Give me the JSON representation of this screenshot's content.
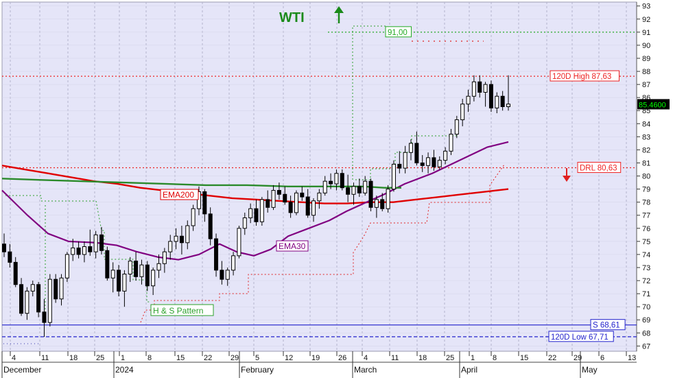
{
  "chart_data": {
    "type": "candlestick",
    "title": "WTI",
    "y_axis": {
      "ticks": [
        67,
        68,
        69,
        70,
        71,
        72,
        73,
        74,
        75,
        76,
        77,
        78,
        79,
        80,
        81,
        82,
        83,
        84,
        85,
        86,
        87,
        88,
        89,
        90,
        91,
        92,
        93
      ],
      "ylim": [
        66.6,
        93.3
      ],
      "side": "right"
    },
    "x_axis": {
      "day_ticks": [
        "4",
        "11",
        "18",
        "25",
        "1",
        "8",
        "15",
        "22",
        "29",
        "5",
        "12",
        "19",
        "26",
        "4",
        "11",
        "18",
        "25",
        "1",
        "8",
        "15",
        "22",
        "29",
        "6",
        "13"
      ],
      "month_labels": [
        "December",
        "2024",
        "February",
        "March",
        "April",
        "May"
      ]
    },
    "current_price": "85.4600",
    "horizontal_levels": [
      {
        "label": "120D High 87,63",
        "value": 87.63,
        "style": "dotted",
        "color": "#ee2222"
      },
      {
        "label": "DRL 80,63",
        "value": 80.63,
        "style": "dotted",
        "color": "#ee2222"
      },
      {
        "label": "S 68,61",
        "value": 68.61,
        "style": "solid",
        "color": "#2222cc"
      },
      {
        "label": "120D Low 67,71",
        "value": 67.71,
        "style": "dashed",
        "color": "#2222cc"
      },
      {
        "label": "91,00",
        "value": 91.0,
        "style": "dotted",
        "color": "#22aa22"
      }
    ],
    "annotations": [
      "EMA200",
      "EMA30",
      "H & S Pattern"
    ],
    "series": [
      {
        "name": "EMA200",
        "color": "#e00000",
        "values": [
          80.8,
          80.5,
          80.2,
          79.9,
          79.6,
          79.4,
          79.1,
          78.9,
          78.7,
          78.5,
          78.3,
          78.2,
          78.1,
          78.0,
          77.9,
          77.9,
          78.0,
          78.0,
          78.2,
          78.4,
          78.6,
          78.8,
          79.0
        ]
      },
      {
        "name": "EMA30",
        "color": "#800080",
        "values": [
          78.9,
          77.0,
          75.6,
          75.0,
          74.9,
          74.7,
          74.2,
          73.8,
          73.6,
          74.0,
          74.8,
          74.2,
          73.9,
          74.4,
          75.4,
          76.0,
          76.6,
          77.3,
          77.9,
          78.6,
          79.4,
          80.2,
          81.2,
          82.2,
          82.6
        ]
      },
      {
        "name": "long-term trend",
        "color": "#2a8a2a",
        "values": [
          79.8,
          79.7,
          79.6,
          79.5,
          79.4,
          79.3,
          79.3,
          79.2,
          79.2,
          79.2,
          79.2,
          79.1,
          79.1,
          79.1
        ]
      }
    ],
    "candles": [
      [
        74.8,
        75.6,
        73.8,
        74.2
      ],
      [
        74.2,
        74.8,
        73.0,
        73.4
      ],
      [
        73.4,
        73.8,
        71.5,
        71.7
      ],
      [
        71.7,
        72.2,
        69.3,
        69.5
      ],
      [
        69.5,
        71.5,
        69.0,
        71.2
      ],
      [
        71.2,
        72.0,
        70.8,
        71.7
      ],
      [
        71.7,
        71.9,
        69.2,
        69.6
      ],
      [
        69.6,
        70.6,
        67.7,
        68.8
      ],
      [
        68.8,
        72.5,
        68.5,
        72.1
      ],
      [
        72.1,
        72.5,
        70.3,
        70.6
      ],
      [
        70.6,
        72.5,
        70.1,
        72.2
      ],
      [
        72.2,
        74.2,
        71.9,
        74.0
      ],
      [
        74.0,
        75.2,
        73.5,
        74.5
      ],
      [
        74.5,
        75.0,
        73.7,
        74.0
      ],
      [
        74.0,
        75.0,
        73.4,
        74.6
      ],
      [
        74.6,
        75.9,
        73.9,
        74.2
      ],
      [
        74.2,
        75.8,
        73.7,
        75.5
      ],
      [
        75.5,
        76.1,
        74.0,
        74.3
      ],
      [
        74.3,
        74.6,
        72.0,
        72.2
      ],
      [
        72.2,
        73.4,
        71.1,
        72.8
      ],
      [
        72.8,
        73.2,
        70.8,
        71.2
      ],
      [
        71.2,
        72.8,
        70.0,
        72.5
      ],
      [
        72.5,
        73.8,
        71.9,
        73.5
      ],
      [
        73.5,
        74.2,
        72.0,
        72.3
      ],
      [
        72.3,
        73.6,
        71.7,
        73.2
      ],
      [
        73.2,
        73.5,
        71.2,
        71.6
      ],
      [
        71.6,
        73.0,
        70.9,
        72.8
      ],
      [
        72.8,
        74.0,
        72.2,
        73.3
      ],
      [
        73.3,
        74.5,
        72.6,
        74.2
      ],
      [
        74.2,
        75.5,
        73.6,
        75.0
      ],
      [
        75.0,
        76.0,
        74.4,
        75.4
      ],
      [
        75.4,
        76.2,
        74.0,
        74.9
      ],
      [
        74.9,
        76.6,
        74.4,
        76.2
      ],
      [
        76.2,
        77.8,
        75.8,
        77.5
      ],
      [
        77.5,
        79.2,
        77.0,
        78.8
      ],
      [
        78.8,
        79.0,
        76.5,
        77.1
      ],
      [
        77.1,
        77.6,
        74.7,
        75.2
      ],
      [
        75.2,
        75.6,
        72.3,
        72.8
      ],
      [
        72.8,
        73.5,
        71.7,
        72.1
      ],
      [
        72.1,
        73.0,
        71.6,
        72.8
      ],
      [
        72.8,
        74.2,
        72.4,
        73.9
      ],
      [
        73.9,
        76.2,
        73.7,
        76.0
      ],
      [
        76.0,
        77.2,
        75.5,
        76.8
      ],
      [
        76.8,
        77.9,
        76.4,
        77.5
      ],
      [
        77.5,
        78.2,
        76.2,
        76.5
      ],
      [
        76.5,
        78.4,
        76.2,
        78.2
      ],
      [
        78.2,
        78.9,
        77.2,
        77.6
      ],
      [
        77.6,
        79.3,
        77.4,
        78.9
      ],
      [
        78.9,
        79.5,
        78.2,
        78.6
      ],
      [
        78.6,
        79.2,
        77.8,
        78.0
      ],
      [
        78.0,
        78.5,
        76.8,
        77.2
      ],
      [
        77.2,
        78.9,
        77.0,
        78.7
      ],
      [
        78.7,
        79.2,
        78.1,
        78.4
      ],
      [
        78.4,
        79.0,
        76.8,
        77.0
      ],
      [
        77.0,
        78.3,
        76.5,
        78.1
      ],
      [
        78.1,
        79.0,
        77.5,
        78.7
      ],
      [
        78.7,
        80.0,
        78.5,
        79.6
      ],
      [
        79.6,
        80.2,
        79.0,
        79.4
      ],
      [
        79.4,
        80.5,
        78.9,
        80.2
      ],
      [
        80.2,
        80.5,
        78.9,
        79.1
      ],
      [
        79.1,
        80.1,
        78.0,
        78.6
      ],
      [
        78.6,
        79.5,
        77.8,
        79.2
      ],
      [
        79.2,
        79.8,
        78.4,
        78.7
      ],
      [
        78.7,
        80.0,
        78.5,
        79.6
      ],
      [
        79.6,
        79.8,
        77.3,
        77.6
      ],
      [
        77.6,
        78.5,
        76.8,
        78.2
      ],
      [
        78.2,
        78.7,
        77.3,
        77.5
      ],
      [
        77.5,
        79.3,
        77.2,
        79.0
      ],
      [
        79.0,
        81.2,
        78.8,
        80.9
      ],
      [
        80.9,
        81.9,
        80.2,
        80.6
      ],
      [
        80.6,
        82.3,
        80.2,
        81.8
      ],
      [
        81.8,
        82.8,
        81.2,
        82.5
      ],
      [
        82.5,
        83.4,
        80.8,
        81.0
      ],
      [
        81.0,
        81.6,
        80.3,
        80.8
      ],
      [
        80.8,
        81.8,
        80.2,
        81.4
      ],
      [
        81.4,
        82.0,
        80.4,
        80.7
      ],
      [
        80.7,
        81.5,
        80.5,
        81.2
      ],
      [
        81.2,
        82.2,
        80.9,
        81.9
      ],
      [
        81.9,
        83.6,
        81.6,
        83.2
      ],
      [
        83.2,
        84.6,
        82.9,
        84.3
      ],
      [
        84.3,
        85.9,
        83.8,
        85.5
      ],
      [
        85.5,
        86.6,
        84.9,
        86.1
      ],
      [
        86.1,
        87.7,
        85.7,
        87.2
      ],
      [
        87.2,
        87.7,
        86.0,
        86.4
      ],
      [
        86.4,
        87.2,
        85.3,
        87.0
      ],
      [
        87.0,
        87.3,
        84.9,
        85.2
      ],
      [
        85.2,
        86.4,
        84.8,
        86.1
      ],
      [
        86.1,
        86.5,
        85.0,
        85.3
      ],
      [
        85.3,
        87.7,
        85.0,
        85.5
      ]
    ]
  }
}
